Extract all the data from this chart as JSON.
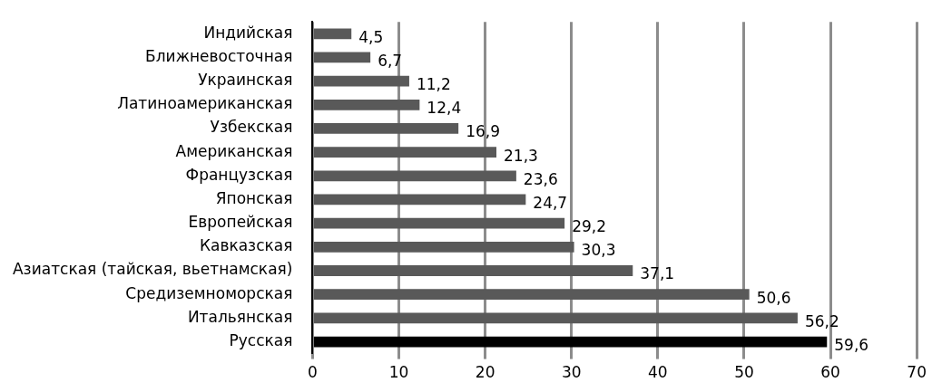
{
  "chart_data": {
    "type": "bar",
    "orientation": "horizontal",
    "categories": [
      "Индийская",
      "Ближневосточная",
      "Украинская",
      "Латиноамериканская",
      "Узбекская",
      "Американская",
      "Французская",
      "Японская",
      "Европейская",
      "Кавказская",
      "Азиатская (тайская, вьетнамская)",
      "Средиземноморская",
      "Итальянская",
      "Русская"
    ],
    "values": [
      4.5,
      6.7,
      11.2,
      12.4,
      16.9,
      21.3,
      23.6,
      24.7,
      29.2,
      30.3,
      37.1,
      50.6,
      56.2,
      59.6
    ],
    "value_labels": [
      "4,5",
      "6,7",
      "11,2",
      "12,4",
      "16,9",
      "21,3",
      "23,6",
      "24,7",
      "29,2",
      "30,3",
      "37,1",
      "50,6",
      "56,2",
      "59,6"
    ],
    "colors": [
      "#595959",
      "#595959",
      "#595959",
      "#595959",
      "#595959",
      "#595959",
      "#595959",
      "#595959",
      "#595959",
      "#595959",
      "#595959",
      "#595959",
      "#595959",
      "#000000"
    ],
    "xlim": [
      0,
      70
    ],
    "xticks": [
      0,
      10,
      20,
      30,
      40,
      50,
      60,
      70
    ],
    "grid": "x",
    "legend": false
  }
}
